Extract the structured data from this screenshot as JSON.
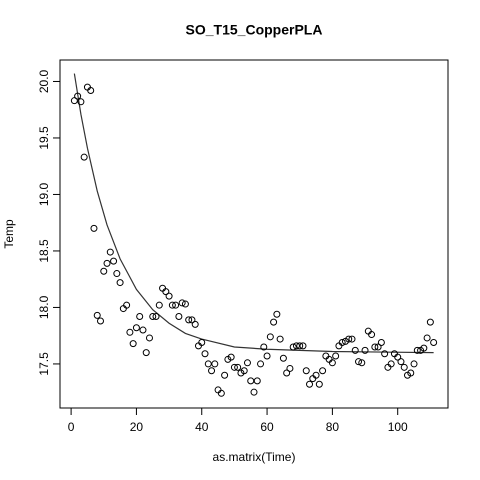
{
  "chart_data": {
    "type": "scatter",
    "title": "SO_T15_CopperPLA",
    "x_label": "as.matrix(Time)",
    "y_label": "Temp",
    "xlim": [
      -3.4,
      115.4
    ],
    "xticks": [
      0,
      20,
      40,
      60,
      80,
      100
    ],
    "ylim": [
      17.11,
      20.19
    ],
    "yticks": [
      {
        "value": 17.5,
        "label": "17.5"
      },
      {
        "value": 18,
        "label": "18.0"
      },
      {
        "value": 18.5,
        "label": "18.5"
      },
      {
        "value": 19,
        "label": "19.0"
      },
      {
        "value": 19.5,
        "label": "19.5"
      },
      {
        "value": 20,
        "label": "20.0"
      }
    ],
    "color": "#000000",
    "x": [
      1,
      2,
      3,
      4,
      5,
      6,
      7,
      8,
      9,
      10,
      11,
      12,
      13,
      14,
      15,
      16,
      17,
      18,
      19,
      20,
      21,
      22,
      23,
      24,
      25,
      26,
      27,
      28,
      29,
      30,
      31,
      32,
      33,
      34,
      35,
      36,
      37,
      38,
      39,
      40,
      41,
      42,
      43,
      44,
      45,
      46,
      47,
      48,
      49,
      50,
      51,
      52,
      53,
      54,
      55,
      56,
      57,
      58,
      59,
      60,
      61,
      62,
      63,
      64,
      65,
      66,
      67,
      68,
      69,
      70,
      71,
      72,
      73,
      74,
      75,
      76,
      77,
      78,
      79,
      80,
      81,
      82,
      83,
      84,
      85,
      86,
      87,
      88,
      89,
      90,
      91,
      92,
      93,
      94,
      95,
      96,
      97,
      98,
      99,
      100,
      101,
      102,
      103,
      104,
      105,
      106,
      107,
      108,
      109,
      110,
      111
    ],
    "values": [
      19.83,
      19.87,
      19.82,
      19.33,
      19.95,
      19.92,
      18.7,
      17.93,
      17.88,
      18.32,
      18.39,
      18.49,
      18.41,
      18.3,
      18.22,
      17.99,
      18.02,
      17.78,
      17.68,
      17.82,
      17.92,
      17.8,
      17.6,
      17.73,
      17.92,
      17.92,
      18.02,
      18.17,
      18.14,
      18.1,
      18.02,
      18.02,
      17.92,
      18.04,
      18.03,
      17.89,
      17.89,
      17.85,
      17.66,
      17.69,
      17.59,
      17.5,
      17.44,
      17.5,
      17.27,
      17.24,
      17.4,
      17.54,
      17.56,
      17.47,
      17.47,
      17.42,
      17.44,
      17.51,
      17.35,
      17.25,
      17.35,
      17.5,
      17.65,
      17.57,
      17.74,
      17.87,
      17.94,
      17.72,
      17.55,
      17.42,
      17.46,
      17.65,
      17.66,
      17.66,
      17.66,
      17.44,
      17.32,
      17.37,
      17.4,
      17.32,
      17.44,
      17.57,
      17.54,
      17.51,
      17.57,
      17.66,
      17.69,
      17.7,
      17.72,
      17.72,
      17.62,
      17.52,
      17.51,
      17.62,
      17.79,
      17.76,
      17.65,
      17.65,
      17.69,
      17.59,
      17.47,
      17.5,
      17.59,
      17.56,
      17.52,
      17.47,
      17.4,
      17.42,
      17.5,
      17.62,
      17.62,
      17.64,
      17.73,
      17.87,
      17.69
    ],
    "fit": {
      "color": "#333333",
      "x": [
        1,
        3,
        5,
        8,
        11,
        15,
        20,
        25,
        30,
        35,
        40,
        50,
        60,
        80,
        111
      ],
      "values": [
        20.07,
        19.71,
        19.41,
        19.03,
        18.73,
        18.43,
        18.16,
        17.98,
        17.86,
        17.77,
        17.72,
        17.65,
        17.63,
        17.61,
        17.6
      ]
    }
  }
}
